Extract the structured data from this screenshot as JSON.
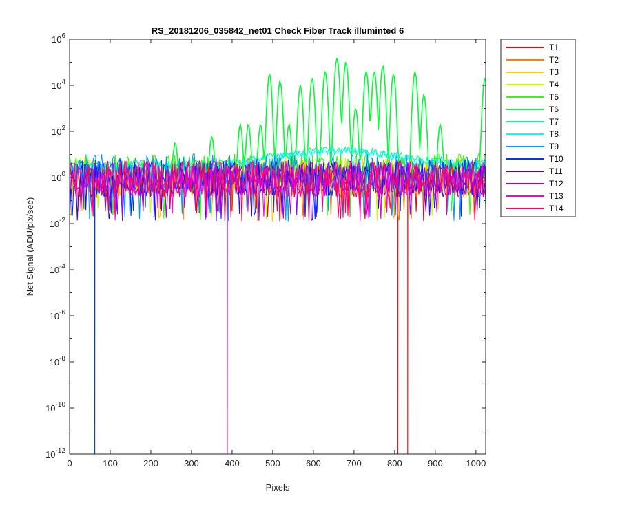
{
  "chart_data": {
    "type": "line",
    "title": "RS_20181206_035842_net01   Check Fiber     Track illuminted 6",
    "xlabel": "Pixels",
    "ylabel": "Net Signal (ADU/pix/sec)",
    "xlim": [
      0,
      1024
    ],
    "ylim_log10": [
      -12,
      6
    ],
    "yscale": "log",
    "x_ticks": [
      0,
      100,
      200,
      300,
      400,
      500,
      600,
      700,
      800,
      900,
      1000
    ],
    "x_tick_labels": [
      "0",
      "100",
      "200",
      "300",
      "400",
      "500",
      "600",
      "700",
      "800",
      "900",
      "1000"
    ],
    "y_tick_exponents": [
      -12,
      -10,
      -8,
      -6,
      -4,
      -2,
      0,
      2,
      4,
      6
    ],
    "y_tick_base": "10",
    "grid": false,
    "legend_position": "outside-right",
    "series": [
      {
        "name": "T1",
        "color": "#ff0000",
        "baseline": 1.0,
        "dips": [
          {
            "x": 808,
            "y": 1e-12
          },
          {
            "x": 832,
            "y": 1e-12
          }
        ]
      },
      {
        "name": "T2",
        "color": "#ff7f00",
        "baseline": 1.0,
        "dips": []
      },
      {
        "name": "T3",
        "color": "#ffcc00",
        "baseline": 1.2,
        "dips": []
      },
      {
        "name": "T4",
        "color": "#ccff00",
        "baseline": 1.5,
        "dips": []
      },
      {
        "name": "T5",
        "color": "#33ff00",
        "baseline": 2.0,
        "dips": []
      },
      {
        "name": "T6",
        "color": "#00ff33",
        "baseline": 5.0,
        "dips": [],
        "peaks": [
          {
            "x": 260,
            "y": 30
          },
          {
            "x": 350,
            "y": 60
          },
          {
            "x": 420,
            "y": 200
          },
          {
            "x": 440,
            "y": 200
          },
          {
            "x": 470,
            "y": 200
          },
          {
            "x": 492,
            "y": 30000
          },
          {
            "x": 518,
            "y": 15000
          },
          {
            "x": 540,
            "y": 200
          },
          {
            "x": 568,
            "y": 10000
          },
          {
            "x": 597,
            "y": 20000
          },
          {
            "x": 629,
            "y": 40000
          },
          {
            "x": 658,
            "y": 150000
          },
          {
            "x": 680,
            "y": 100000
          },
          {
            "x": 704,
            "y": 1000
          },
          {
            "x": 730,
            "y": 40000
          },
          {
            "x": 750,
            "y": 40000
          },
          {
            "x": 771,
            "y": 70000
          },
          {
            "x": 797,
            "y": 30000
          },
          {
            "x": 850,
            "y": 40000
          },
          {
            "x": 872,
            "y": 4000
          },
          {
            "x": 912,
            "y": 200
          },
          {
            "x": 1022,
            "y": 20000
          }
        ]
      },
      {
        "name": "T7",
        "color": "#00ff99",
        "baseline": 5.0,
        "dips": []
      },
      {
        "name": "T8",
        "color": "#00ffff",
        "baseline": 3.0,
        "dips": []
      },
      {
        "name": "T9",
        "color": "#0099ff",
        "baseline": 2.0,
        "dips": []
      },
      {
        "name": "T10",
        "color": "#0033ff",
        "baseline": 1.2,
        "dips": [
          {
            "x": 62,
            "y": 1e-12
          }
        ]
      },
      {
        "name": "T11",
        "color": "#3300ff",
        "baseline": 1.0,
        "dips": []
      },
      {
        "name": "T12",
        "color": "#9900ff",
        "baseline": 1.0,
        "dips": [
          {
            "x": 388,
            "y": 1e-12
          }
        ]
      },
      {
        "name": "T13",
        "color": "#ff00cc",
        "baseline": 1.0,
        "dips": []
      },
      {
        "name": "T14",
        "color": "#ff0066",
        "baseline": 1.0,
        "dips": []
      }
    ]
  }
}
